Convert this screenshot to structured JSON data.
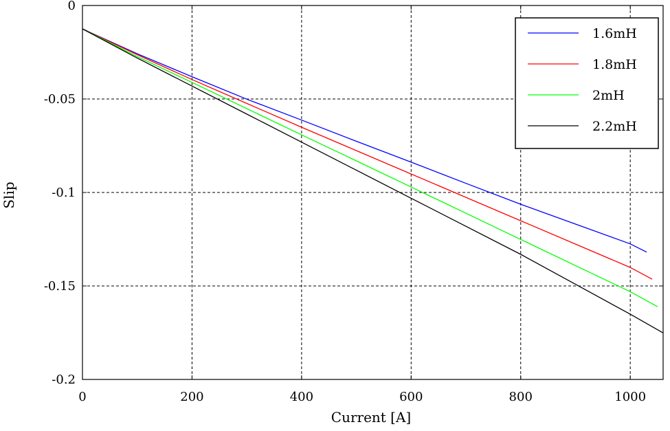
{
  "chart_data": {
    "type": "line",
    "title": "",
    "xlabel": "Current [A]",
    "ylabel": "Slip",
    "xlim": [
      0,
      1060
    ],
    "ylim": [
      -0.2,
      0
    ],
    "grid": true,
    "legend_position": "top-right",
    "x_ticks": [
      0,
      200,
      400,
      600,
      800,
      1000
    ],
    "x_tick_labels": [
      "0",
      "200",
      "400",
      "600",
      "800",
      "1000"
    ],
    "y_ticks": [
      0,
      -0.05,
      -0.1,
      -0.15,
      -0.2
    ],
    "y_tick_labels": [
      "0",
      "-0.05",
      "-0.1",
      "-0.15",
      "-0.2"
    ],
    "series": [
      {
        "name": "1.6mH",
        "color": "#0000ff",
        "x": [
          0,
          100,
          200,
          300,
          400,
          500,
          600,
          700,
          800,
          900,
          1000,
          1030
        ],
        "y": [
          -0.0125,
          -0.0258,
          -0.0381,
          -0.0501,
          -0.0613,
          -0.0726,
          -0.0838,
          -0.0951,
          -0.1063,
          -0.1169,
          -0.1275,
          -0.1319
        ]
      },
      {
        "name": "1.8mH",
        "color": "#ff0000",
        "x": [
          0,
          100,
          200,
          300,
          400,
          500,
          600,
          700,
          800,
          900,
          1000,
          1040
        ],
        "y": [
          -0.0125,
          -0.0263,
          -0.0396,
          -0.0524,
          -0.0651,
          -0.0776,
          -0.0901,
          -0.1026,
          -0.1151,
          -0.1276,
          -0.1401,
          -0.1464
        ]
      },
      {
        "name": "2mH",
        "color": "#00ff00",
        "x": [
          0,
          100,
          200,
          300,
          400,
          500,
          600,
          700,
          800,
          900,
          1000,
          1050
        ],
        "y": [
          -0.0125,
          -0.0273,
          -0.0411,
          -0.0552,
          -0.0692,
          -0.0831,
          -0.0971,
          -0.1111,
          -0.1251,
          -0.1391,
          -0.1531,
          -0.1611
        ]
      },
      {
        "name": "2.2mH",
        "color": "#000000",
        "x": [
          0,
          100,
          200,
          300,
          400,
          500,
          600,
          700,
          800,
          900,
          1000,
          1060
        ],
        "y": [
          -0.0125,
          -0.0281,
          -0.0431,
          -0.0581,
          -0.0731,
          -0.0881,
          -0.1031,
          -0.1181,
          -0.1331,
          -0.1491,
          -0.1651,
          -0.1751
        ]
      }
    ]
  }
}
